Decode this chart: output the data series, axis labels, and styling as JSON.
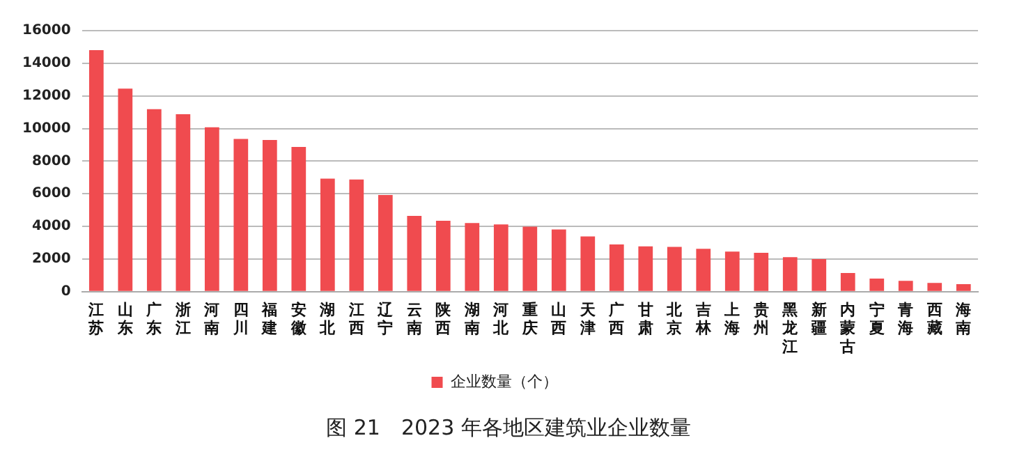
{
  "chart_data": {
    "type": "bar",
    "title": "图 21　2023 年各地区建筑业企业数量",
    "categories": [
      "江苏",
      "山东",
      "广东",
      "浙江",
      "河南",
      "四川",
      "福建",
      "安徽",
      "湖北",
      "江西",
      "辽宁",
      "云南",
      "陕西",
      "湖南",
      "河北",
      "重庆",
      "山西",
      "天津",
      "广西",
      "甘肃",
      "北京",
      "吉林",
      "上海",
      "贵州",
      "黑龙江",
      "新疆",
      "内蒙古",
      "宁夏",
      "青海",
      "西藏",
      "海南"
    ],
    "series": [
      {
        "name": "企业数量（个）",
        "color": "#f04b4f",
        "values": [
          14800,
          12450,
          11190,
          10880,
          10080,
          9360,
          9300,
          8870,
          6930,
          6870,
          5930,
          4640,
          4350,
          4210,
          4120,
          3980,
          3810,
          3380,
          2890,
          2780,
          2750,
          2630,
          2460,
          2380,
          2120,
          2000,
          1140,
          800,
          660,
          540,
          460
        ]
      }
    ],
    "ylim": [
      0,
      16000
    ],
    "yticks": [
      0,
      2000,
      4000,
      6000,
      8000,
      10000,
      12000,
      14000,
      16000
    ],
    "grid": "y",
    "legend": "bottom"
  }
}
